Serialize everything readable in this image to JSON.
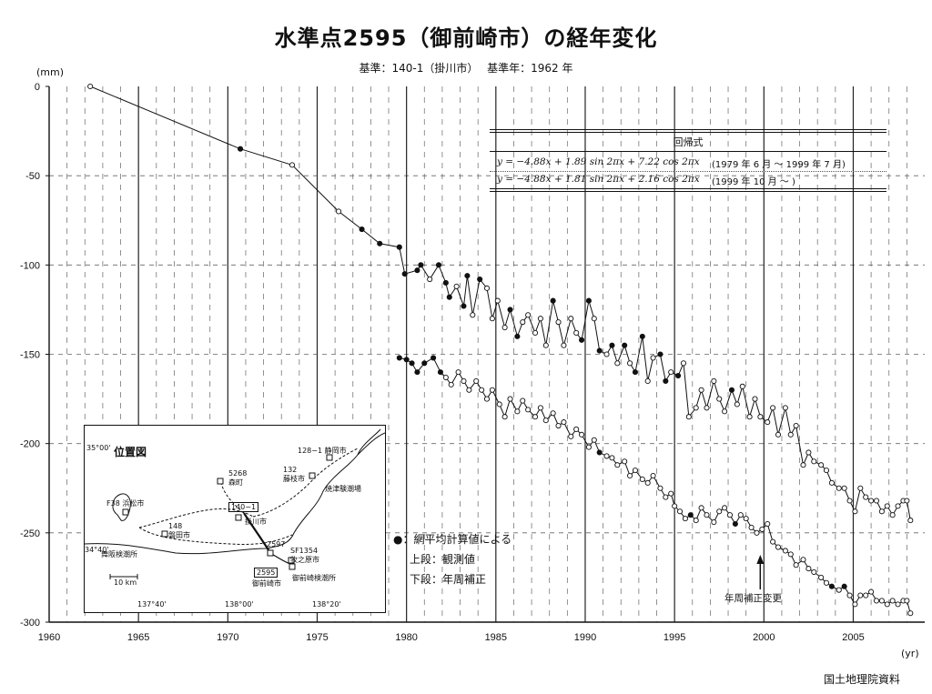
{
  "title": "水準点2595（御前崎市）の経年変化",
  "subtitle": "基準：140-1（掛川市）　 基準年：1962 年",
  "y_unit": "(mm)",
  "x_unit": "(yr)",
  "source": "国土地理院資料",
  "regression": {
    "title": "回帰式",
    "rows": [
      {
        "formula": "y = −4.88x + 1.89 sin 2πx + 7.22 cos 2πx",
        "period": "(1979 年  6 月  〜  1999 年 7 月)"
      },
      {
        "formula": "y = −4.88x + 1.81 sin 2πx + 2.16 cos 2πx",
        "period": "(1999 年 10 月  〜  )"
      }
    ]
  },
  "legend": {
    "dot_note": "●：網平均計算値による",
    "upper": "上段：観測値",
    "lower": "下段：年周補正"
  },
  "annotation": "年周補正変更",
  "inset": {
    "title": "位置図",
    "labels": {
      "lat1": "35°00'",
      "lat2": "34°40'",
      "lon1": "137°40'",
      "lon2": "138°00'",
      "lon3": "138°20'",
      "scale": "10 km",
      "shizuoka": "128−1  静岡市",
      "fujieda": "132\n藤枝市",
      "yaizu": "焼津験潮場",
      "mori": "5268\n森町",
      "hamamatsu": "F38  浜松市",
      "iwata": "148\n磐田市",
      "kakegawa_bm": "140−1",
      "kakegawa": "掛川市",
      "maisaka": "舞阪検潮所",
      "bm2597": "2597",
      "makinohara": "SF1354\n牧之原市",
      "bm2595": "2595",
      "omaezaki": "御前崎市",
      "omaezaki_tide": "御前崎検潮所"
    }
  },
  "chart_data": {
    "type": "line",
    "xlim": [
      1960,
      2009
    ],
    "ylim": [
      -300,
      0
    ],
    "x_ticks": [
      1960,
      1965,
      1970,
      1975,
      1980,
      1985,
      1990,
      1995,
      2000,
      2005
    ],
    "y_ticks": [
      0,
      -50,
      -100,
      -150,
      -200,
      -250,
      -300
    ],
    "grid": true,
    "annotation_x": 2000,
    "series": [
      {
        "name": "上段：観測値",
        "points": [
          [
            1962.3,
            0,
            0
          ],
          [
            1970.7,
            -35,
            1
          ],
          [
            1973.6,
            -44,
            0
          ],
          [
            1976.2,
            -70,
            0
          ],
          [
            1977.5,
            -80,
            1
          ],
          [
            1978.5,
            -88,
            1
          ],
          [
            1979.6,
            -90,
            1
          ],
          [
            1979.9,
            -105,
            1
          ],
          [
            1980.6,
            -103,
            1
          ],
          [
            1980.8,
            -100,
            1
          ],
          [
            1981.3,
            -108,
            0
          ],
          [
            1981.8,
            -100,
            1
          ],
          [
            1982.2,
            -110,
            1
          ],
          [
            1982.4,
            -118,
            1
          ],
          [
            1982.8,
            -112,
            0
          ],
          [
            1983.2,
            -123,
            1
          ],
          [
            1983.4,
            -106,
            1
          ],
          [
            1983.7,
            -128,
            0
          ],
          [
            1984.1,
            -108,
            1
          ],
          [
            1984.5,
            -113,
            0
          ],
          [
            1984.8,
            -130,
            0
          ],
          [
            1985.1,
            -120,
            0
          ],
          [
            1985.5,
            -135,
            0
          ],
          [
            1985.8,
            -125,
            1
          ],
          [
            1986.2,
            -140,
            1
          ],
          [
            1986.5,
            -132,
            0
          ],
          [
            1986.8,
            -128,
            0
          ],
          [
            1987.2,
            -138,
            0
          ],
          [
            1987.5,
            -130,
            0
          ],
          [
            1987.8,
            -145,
            0
          ],
          [
            1988.2,
            -120,
            1
          ],
          [
            1988.5,
            -132,
            0
          ],
          [
            1988.8,
            -145,
            0
          ],
          [
            1989.2,
            -130,
            0
          ],
          [
            1989.5,
            -138,
            0
          ],
          [
            1989.8,
            -142,
            1
          ],
          [
            1990.2,
            -120,
            1
          ],
          [
            1990.5,
            -130,
            0
          ],
          [
            1990.8,
            -148,
            1
          ],
          [
            1991.2,
            -150,
            0
          ],
          [
            1991.5,
            -145,
            1
          ],
          [
            1991.8,
            -155,
            0
          ],
          [
            1992.2,
            -145,
            1
          ],
          [
            1992.5,
            -155,
            0
          ],
          [
            1992.8,
            -160,
            1
          ],
          [
            1993.2,
            -140,
            1
          ],
          [
            1993.5,
            -165,
            0
          ],
          [
            1993.8,
            -152,
            0
          ],
          [
            1994.2,
            -150,
            1
          ],
          [
            1994.5,
            -165,
            1
          ],
          [
            1994.8,
            -160,
            0
          ],
          [
            1995.2,
            -162,
            1
          ],
          [
            1995.5,
            -155,
            0
          ],
          [
            1995.8,
            -185,
            0
          ],
          [
            1996.2,
            -180,
            0
          ],
          [
            1996.5,
            -170,
            0
          ],
          [
            1996.8,
            -180,
            0
          ],
          [
            1997.2,
            -165,
            0
          ],
          [
            1997.5,
            -175,
            0
          ],
          [
            1997.8,
            -182,
            0
          ],
          [
            1998.2,
            -170,
            1
          ],
          [
            1998.5,
            -178,
            0
          ],
          [
            1998.8,
            -168,
            0
          ],
          [
            1999.2,
            -185,
            0
          ],
          [
            1999.5,
            -175,
            0
          ],
          [
            1999.8,
            -185,
            0
          ],
          [
            2000.2,
            -188,
            0
          ],
          [
            2000.5,
            -180,
            0
          ],
          [
            2000.8,
            -195,
            0
          ],
          [
            2001.2,
            -180,
            0
          ],
          [
            2001.5,
            -195,
            0
          ],
          [
            2001.8,
            -190,
            0
          ],
          [
            2002.2,
            -212,
            0
          ],
          [
            2002.5,
            -205,
            0
          ],
          [
            2002.8,
            -210,
            0
          ],
          [
            2003.2,
            -212,
            0
          ],
          [
            2003.5,
            -215,
            0
          ],
          [
            2003.8,
            -222,
            0
          ],
          [
            2004.2,
            -225,
            0
          ],
          [
            2004.5,
            -225,
            0
          ],
          [
            2004.8,
            -232,
            0
          ],
          [
            2005.1,
            -238,
            0
          ],
          [
            2005.4,
            -225,
            0
          ],
          [
            2005.7,
            -230,
            0
          ],
          [
            2006.0,
            -232,
            0
          ],
          [
            2006.3,
            -232,
            0
          ],
          [
            2006.6,
            -238,
            0
          ],
          [
            2006.9,
            -235,
            0
          ],
          [
            2007.2,
            -240,
            0
          ],
          [
            2007.5,
            -235,
            0
          ],
          [
            2007.8,
            -232,
            0
          ],
          [
            2008.0,
            -232,
            0
          ],
          [
            2008.2,
            -243,
            0
          ]
        ]
      },
      {
        "name": "下段：年周補正",
        "points": [
          [
            1979.6,
            -152,
            1
          ],
          [
            1980.0,
            -153,
            1
          ],
          [
            1980.3,
            -155,
            1
          ],
          [
            1980.6,
            -160,
            1
          ],
          [
            1981.0,
            -155,
            1
          ],
          [
            1981.5,
            -152,
            1
          ],
          [
            1981.9,
            -160,
            1
          ],
          [
            1982.2,
            -163,
            0
          ],
          [
            1982.5,
            -167,
            0
          ],
          [
            1982.9,
            -160,
            0
          ],
          [
            1983.2,
            -165,
            0
          ],
          [
            1983.5,
            -170,
            0
          ],
          [
            1983.9,
            -165,
            0
          ],
          [
            1984.2,
            -170,
            0
          ],
          [
            1984.5,
            -175,
            0
          ],
          [
            1984.8,
            -170,
            0
          ],
          [
            1985.2,
            -178,
            0
          ],
          [
            1985.5,
            -185,
            0
          ],
          [
            1985.8,
            -175,
            0
          ],
          [
            1986.2,
            -182,
            0
          ],
          [
            1986.5,
            -176,
            0
          ],
          [
            1986.8,
            -181,
            0
          ],
          [
            1987.2,
            -185,
            0
          ],
          [
            1987.5,
            -180,
            0
          ],
          [
            1987.8,
            -187,
            0
          ],
          [
            1988.2,
            -183,
            0
          ],
          [
            1988.5,
            -190,
            0
          ],
          [
            1988.8,
            -188,
            0
          ],
          [
            1989.2,
            -196,
            0
          ],
          [
            1989.5,
            -192,
            0
          ],
          [
            1989.8,
            -195,
            0
          ],
          [
            1990.2,
            -202,
            0
          ],
          [
            1990.5,
            -198,
            0
          ],
          [
            1990.8,
            -205,
            1
          ],
          [
            1991.2,
            -207,
            0
          ],
          [
            1991.5,
            -208,
            0
          ],
          [
            1991.8,
            -212,
            0
          ],
          [
            1992.2,
            -210,
            0
          ],
          [
            1992.5,
            -218,
            0
          ],
          [
            1992.8,
            -215,
            0
          ],
          [
            1993.2,
            -220,
            0
          ],
          [
            1993.5,
            -222,
            0
          ],
          [
            1993.8,
            -218,
            0
          ],
          [
            1994.2,
            -225,
            0
          ],
          [
            1994.5,
            -230,
            0
          ],
          [
            1994.8,
            -228,
            0
          ],
          [
            1995.0,
            -235,
            0
          ],
          [
            1995.3,
            -238,
            0
          ],
          [
            1995.6,
            -242,
            0
          ],
          [
            1995.9,
            -240,
            1
          ],
          [
            1996.2,
            -243,
            0
          ],
          [
            1996.5,
            -236,
            0
          ],
          [
            1996.8,
            -240,
            0
          ],
          [
            1997.2,
            -244,
            0
          ],
          [
            1997.5,
            -238,
            0
          ],
          [
            1997.8,
            -236,
            0
          ],
          [
            1998.1,
            -240,
            0
          ],
          [
            1998.4,
            -245,
            1
          ],
          [
            1998.7,
            -240,
            0
          ],
          [
            1999.0,
            -242,
            0
          ],
          [
            1999.3,
            -247,
            0
          ],
          [
            1999.6,
            -250,
            0
          ],
          [
            1999.9,
            -248,
            0
          ],
          [
            2000.2,
            -245,
            0
          ],
          [
            2000.5,
            -255,
            0
          ],
          [
            2000.8,
            -258,
            0
          ],
          [
            2001.2,
            -260,
            0
          ],
          [
            2001.5,
            -262,
            0
          ],
          [
            2001.8,
            -268,
            0
          ],
          [
            2002.2,
            -265,
            0
          ],
          [
            2002.5,
            -270,
            0
          ],
          [
            2002.8,
            -272,
            0
          ],
          [
            2003.2,
            -275,
            0
          ],
          [
            2003.5,
            -278,
            0
          ],
          [
            2003.8,
            -280,
            1
          ],
          [
            2004.2,
            -282,
            0
          ],
          [
            2004.5,
            -280,
            1
          ],
          [
            2004.8,
            -285,
            0
          ],
          [
            2005.1,
            -290,
            0
          ],
          [
            2005.4,
            -285,
            0
          ],
          [
            2005.7,
            -285,
            0
          ],
          [
            2006.0,
            -283,
            0
          ],
          [
            2006.3,
            -288,
            0
          ],
          [
            2006.6,
            -288,
            0
          ],
          [
            2006.9,
            -290,
            0
          ],
          [
            2007.2,
            -288,
            0
          ],
          [
            2007.5,
            -290,
            0
          ],
          [
            2007.8,
            -288,
            0
          ],
          [
            2008.0,
            -288,
            0
          ],
          [
            2008.2,
            -295,
            0
          ]
        ]
      }
    ]
  }
}
